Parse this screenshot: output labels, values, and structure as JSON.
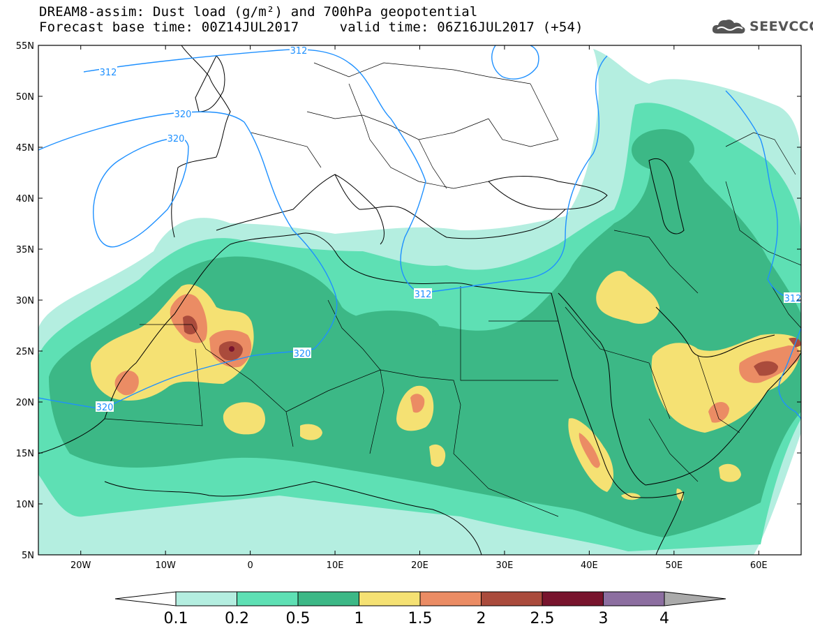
{
  "title": {
    "line1": "DREAM8-assim: Dust load (g/m²) and 700hPa geopotential",
    "line2": "Forecast base time: 00Z14JUL2017     valid time: 06Z16JUL2017 (+54)"
  },
  "logo": {
    "text": "SEEVCCC",
    "icon": "cloud-icon"
  },
  "map": {
    "lon_range": [
      -25,
      65
    ],
    "lat_range": [
      5,
      55
    ],
    "lon_ticks": [
      {
        "lon": -20,
        "label": "20W"
      },
      {
        "lon": -10,
        "label": "10W"
      },
      {
        "lon": 0,
        "label": "0"
      },
      {
        "lon": 10,
        "label": "10E"
      },
      {
        "lon": 20,
        "label": "20E"
      },
      {
        "lon": 30,
        "label": "30E"
      },
      {
        "lon": 40,
        "label": "40E"
      },
      {
        "lon": 50,
        "label": "50E"
      },
      {
        "lon": 60,
        "label": "60E"
      }
    ],
    "lat_ticks": [
      {
        "lat": 55,
        "label": "55N"
      },
      {
        "lat": 50,
        "label": "50N"
      },
      {
        "lat": 45,
        "label": "45N"
      },
      {
        "lat": 40,
        "label": "40N"
      },
      {
        "lat": 35,
        "label": "35N"
      },
      {
        "lat": 30,
        "label": "30N"
      },
      {
        "lat": 25,
        "label": "25N"
      },
      {
        "lat": 20,
        "label": "20N"
      },
      {
        "lat": 15,
        "label": "15N"
      },
      {
        "lat": 10,
        "label": "10N"
      },
      {
        "lat": 5,
        "label": "5N"
      }
    ],
    "contour_labels": [
      "312",
      "320",
      "320",
      "312",
      "320",
      "320",
      "312",
      "312"
    ]
  },
  "colorbar": {
    "ticks": [
      "0.1",
      "0.2",
      "0.5",
      "1",
      "1.5",
      "2",
      "2.5",
      "3",
      "4"
    ],
    "colors": [
      "#b4eee0",
      "#5ee0b4",
      "#3cb886",
      "#f5e173",
      "#eb8c64",
      "#aa4b3c",
      "#78142d",
      "#8c6ea0",
      "#aaaaaa"
    ]
  }
}
